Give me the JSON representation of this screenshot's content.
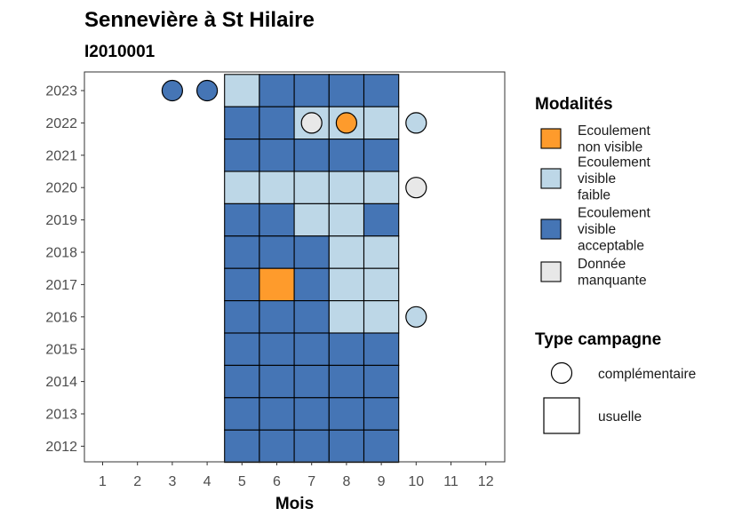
{
  "chart_data": {
    "type": "heatmap",
    "title": "Sennevière à St Hilaire",
    "subtitle": "I2010001",
    "xlabel": "Mois",
    "ylabel": "",
    "x_ticks": [
      "1",
      "2",
      "3",
      "4",
      "5",
      "6",
      "7",
      "8",
      "9",
      "10",
      "11",
      "12"
    ],
    "y_ticks": [
      "2023",
      "2022",
      "2021",
      "2020",
      "2019",
      "2018",
      "2017",
      "2016",
      "2015",
      "2014",
      "2013",
      "2012"
    ],
    "colors": {
      "non_visible": "#FE9B2C",
      "faible": "#BDD7E7",
      "acceptable": "#4575B5",
      "manquante": "#E8E8E8"
    },
    "legend_modalites": {
      "title": "Modalités",
      "items": [
        {
          "key": "non_visible",
          "lines": [
            "Ecoulement",
            "non visible"
          ]
        },
        {
          "key": "faible",
          "lines": [
            "Ecoulement",
            "visible",
            "faible"
          ]
        },
        {
          "key": "acceptable",
          "lines": [
            "Ecoulement",
            "visible",
            "acceptable"
          ]
        },
        {
          "key": "manquante",
          "lines": [
            "Donnée",
            "manquante"
          ]
        }
      ]
    },
    "legend_type": {
      "title": "Type campagne",
      "items": [
        {
          "shape": "circle",
          "label": "complémentaire"
        },
        {
          "shape": "square",
          "label": "usuelle"
        }
      ]
    },
    "cells": [
      {
        "year": 2023,
        "month": 5,
        "type": "usuelle",
        "modalite": "faible"
      },
      {
        "year": 2023,
        "month": 6,
        "type": "usuelle",
        "modalite": "acceptable"
      },
      {
        "year": 2023,
        "month": 7,
        "type": "usuelle",
        "modalite": "acceptable"
      },
      {
        "year": 2023,
        "month": 8,
        "type": "usuelle",
        "modalite": "acceptable"
      },
      {
        "year": 2023,
        "month": 9,
        "type": "usuelle",
        "modalite": "acceptable"
      },
      {
        "year": 2023,
        "month": 3,
        "type": "complémentaire",
        "modalite": "acceptable"
      },
      {
        "year": 2023,
        "month": 4,
        "type": "complémentaire",
        "modalite": "acceptable"
      },
      {
        "year": 2022,
        "month": 5,
        "type": "usuelle",
        "modalite": "acceptable"
      },
      {
        "year": 2022,
        "month": 6,
        "type": "usuelle",
        "modalite": "acceptable"
      },
      {
        "year": 2022,
        "month": 7,
        "type": "usuelle",
        "modalite": "faible"
      },
      {
        "year": 2022,
        "month": 8,
        "type": "usuelle",
        "modalite": "faible"
      },
      {
        "year": 2022,
        "month": 9,
        "type": "usuelle",
        "modalite": "faible"
      },
      {
        "year": 2022,
        "month": 7,
        "type": "complémentaire",
        "modalite": "manquante"
      },
      {
        "year": 2022,
        "month": 8,
        "type": "complémentaire",
        "modalite": "non_visible"
      },
      {
        "year": 2022,
        "month": 10,
        "type": "complémentaire",
        "modalite": "faible"
      },
      {
        "year": 2021,
        "month": 5,
        "type": "usuelle",
        "modalite": "acceptable"
      },
      {
        "year": 2021,
        "month": 6,
        "type": "usuelle",
        "modalite": "acceptable"
      },
      {
        "year": 2021,
        "month": 7,
        "type": "usuelle",
        "modalite": "acceptable"
      },
      {
        "year": 2021,
        "month": 8,
        "type": "usuelle",
        "modalite": "acceptable"
      },
      {
        "year": 2021,
        "month": 9,
        "type": "usuelle",
        "modalite": "acceptable"
      },
      {
        "year": 2020,
        "month": 5,
        "type": "usuelle",
        "modalite": "faible"
      },
      {
        "year": 2020,
        "month": 6,
        "type": "usuelle",
        "modalite": "faible"
      },
      {
        "year": 2020,
        "month": 7,
        "type": "usuelle",
        "modalite": "faible"
      },
      {
        "year": 2020,
        "month": 8,
        "type": "usuelle",
        "modalite": "faible"
      },
      {
        "year": 2020,
        "month": 9,
        "type": "usuelle",
        "modalite": "faible"
      },
      {
        "year": 2020,
        "month": 10,
        "type": "complémentaire",
        "modalite": "manquante"
      },
      {
        "year": 2019,
        "month": 5,
        "type": "usuelle",
        "modalite": "acceptable"
      },
      {
        "year": 2019,
        "month": 6,
        "type": "usuelle",
        "modalite": "acceptable"
      },
      {
        "year": 2019,
        "month": 7,
        "type": "usuelle",
        "modalite": "faible"
      },
      {
        "year": 2019,
        "month": 8,
        "type": "usuelle",
        "modalite": "faible"
      },
      {
        "year": 2019,
        "month": 9,
        "type": "usuelle",
        "modalite": "acceptable"
      },
      {
        "year": 2018,
        "month": 5,
        "type": "usuelle",
        "modalite": "acceptable"
      },
      {
        "year": 2018,
        "month": 6,
        "type": "usuelle",
        "modalite": "acceptable"
      },
      {
        "year": 2018,
        "month": 7,
        "type": "usuelle",
        "modalite": "acceptable"
      },
      {
        "year": 2018,
        "month": 8,
        "type": "usuelle",
        "modalite": "faible"
      },
      {
        "year": 2018,
        "month": 9,
        "type": "usuelle",
        "modalite": "faible"
      },
      {
        "year": 2017,
        "month": 5,
        "type": "usuelle",
        "modalite": "acceptable"
      },
      {
        "year": 2017,
        "month": 6,
        "type": "usuelle",
        "modalite": "non_visible"
      },
      {
        "year": 2017,
        "month": 7,
        "type": "usuelle",
        "modalite": "acceptable"
      },
      {
        "year": 2017,
        "month": 8,
        "type": "usuelle",
        "modalite": "faible"
      },
      {
        "year": 2017,
        "month": 9,
        "type": "usuelle",
        "modalite": "faible"
      },
      {
        "year": 2016,
        "month": 5,
        "type": "usuelle",
        "modalite": "acceptable"
      },
      {
        "year": 2016,
        "month": 6,
        "type": "usuelle",
        "modalite": "acceptable"
      },
      {
        "year": 2016,
        "month": 7,
        "type": "usuelle",
        "modalite": "acceptable"
      },
      {
        "year": 2016,
        "month": 8,
        "type": "usuelle",
        "modalite": "faible"
      },
      {
        "year": 2016,
        "month": 9,
        "type": "usuelle",
        "modalite": "faible"
      },
      {
        "year": 2016,
        "month": 10,
        "type": "complémentaire",
        "modalite": "faible"
      },
      {
        "year": 2015,
        "month": 5,
        "type": "usuelle",
        "modalite": "acceptable"
      },
      {
        "year": 2015,
        "month": 6,
        "type": "usuelle",
        "modalite": "acceptable"
      },
      {
        "year": 2015,
        "month": 7,
        "type": "usuelle",
        "modalite": "acceptable"
      },
      {
        "year": 2015,
        "month": 8,
        "type": "usuelle",
        "modalite": "acceptable"
      },
      {
        "year": 2015,
        "month": 9,
        "type": "usuelle",
        "modalite": "acceptable"
      },
      {
        "year": 2014,
        "month": 5,
        "type": "usuelle",
        "modalite": "acceptable"
      },
      {
        "year": 2014,
        "month": 6,
        "type": "usuelle",
        "modalite": "acceptable"
      },
      {
        "year": 2014,
        "month": 7,
        "type": "usuelle",
        "modalite": "acceptable"
      },
      {
        "year": 2014,
        "month": 8,
        "type": "usuelle",
        "modalite": "acceptable"
      },
      {
        "year": 2014,
        "month": 9,
        "type": "usuelle",
        "modalite": "acceptable"
      },
      {
        "year": 2013,
        "month": 5,
        "type": "usuelle",
        "modalite": "acceptable"
      },
      {
        "year": 2013,
        "month": 6,
        "type": "usuelle",
        "modalite": "acceptable"
      },
      {
        "year": 2013,
        "month": 7,
        "type": "usuelle",
        "modalite": "acceptable"
      },
      {
        "year": 2013,
        "month": 8,
        "type": "usuelle",
        "modalite": "acceptable"
      },
      {
        "year": 2013,
        "month": 9,
        "type": "usuelle",
        "modalite": "acceptable"
      },
      {
        "year": 2012,
        "month": 5,
        "type": "usuelle",
        "modalite": "acceptable"
      },
      {
        "year": 2012,
        "month": 6,
        "type": "usuelle",
        "modalite": "acceptable"
      },
      {
        "year": 2012,
        "month": 7,
        "type": "usuelle",
        "modalite": "acceptable"
      },
      {
        "year": 2012,
        "month": 8,
        "type": "usuelle",
        "modalite": "acceptable"
      },
      {
        "year": 2012,
        "month": 9,
        "type": "usuelle",
        "modalite": "acceptable"
      }
    ]
  }
}
